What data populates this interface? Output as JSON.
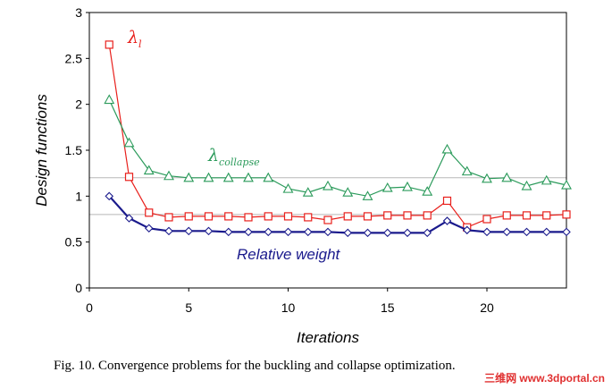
{
  "chart_data": {
    "type": "line",
    "xlabel": "Iterations",
    "ylabel": "Design functions",
    "xlim": [
      0,
      24
    ],
    "ylim": [
      0,
      3
    ],
    "xticks": [
      0,
      5,
      10,
      15,
      20
    ],
    "yticks": [
      0,
      0.5,
      1,
      1.5,
      2,
      2.5,
      3
    ],
    "grid": false,
    "reference_lines": [
      0.8,
      1.2
    ],
    "x": [
      1,
      2,
      3,
      4,
      5,
      6,
      7,
      8,
      9,
      10,
      11,
      12,
      13,
      14,
      15,
      16,
      17,
      18,
      19,
      20,
      21,
      22,
      23,
      24
    ],
    "series": [
      {
        "name_main": "λ",
        "name_sub": "l",
        "color": "#e8201c",
        "marker": "square",
        "values": [
          2.65,
          1.21,
          0.82,
          0.77,
          0.78,
          0.78,
          0.78,
          0.77,
          0.78,
          0.78,
          0.77,
          0.74,
          0.78,
          0.78,
          0.79,
          0.79,
          0.79,
          0.95,
          0.66,
          0.75,
          0.79,
          0.79,
          0.79,
          0.8
        ]
      },
      {
        "name_main": "λ",
        "name_sub": "collapse",
        "color": "#2a9a5a",
        "marker": "triangle",
        "values": [
          2.05,
          1.58,
          1.28,
          1.22,
          1.2,
          1.2,
          1.2,
          1.2,
          1.2,
          1.08,
          1.04,
          1.11,
          1.04,
          1.0,
          1.09,
          1.1,
          1.05,
          1.51,
          1.27,
          1.19,
          1.2,
          1.11,
          1.17,
          1.12
        ]
      },
      {
        "name": "Relative weight",
        "color": "#1a1a8c",
        "marker": "diamond",
        "values": [
          1.0,
          0.76,
          0.65,
          0.62,
          0.62,
          0.62,
          0.61,
          0.61,
          0.61,
          0.61,
          0.61,
          0.61,
          0.6,
          0.6,
          0.6,
          0.6,
          0.6,
          0.73,
          0.63,
          0.61,
          0.61,
          0.61,
          0.61,
          0.61
        ]
      }
    ]
  },
  "caption": "Fig. 10.  Convergence problems for the buckling and collapse optimization.",
  "watermark": "三维网 www.3dportal.cn"
}
